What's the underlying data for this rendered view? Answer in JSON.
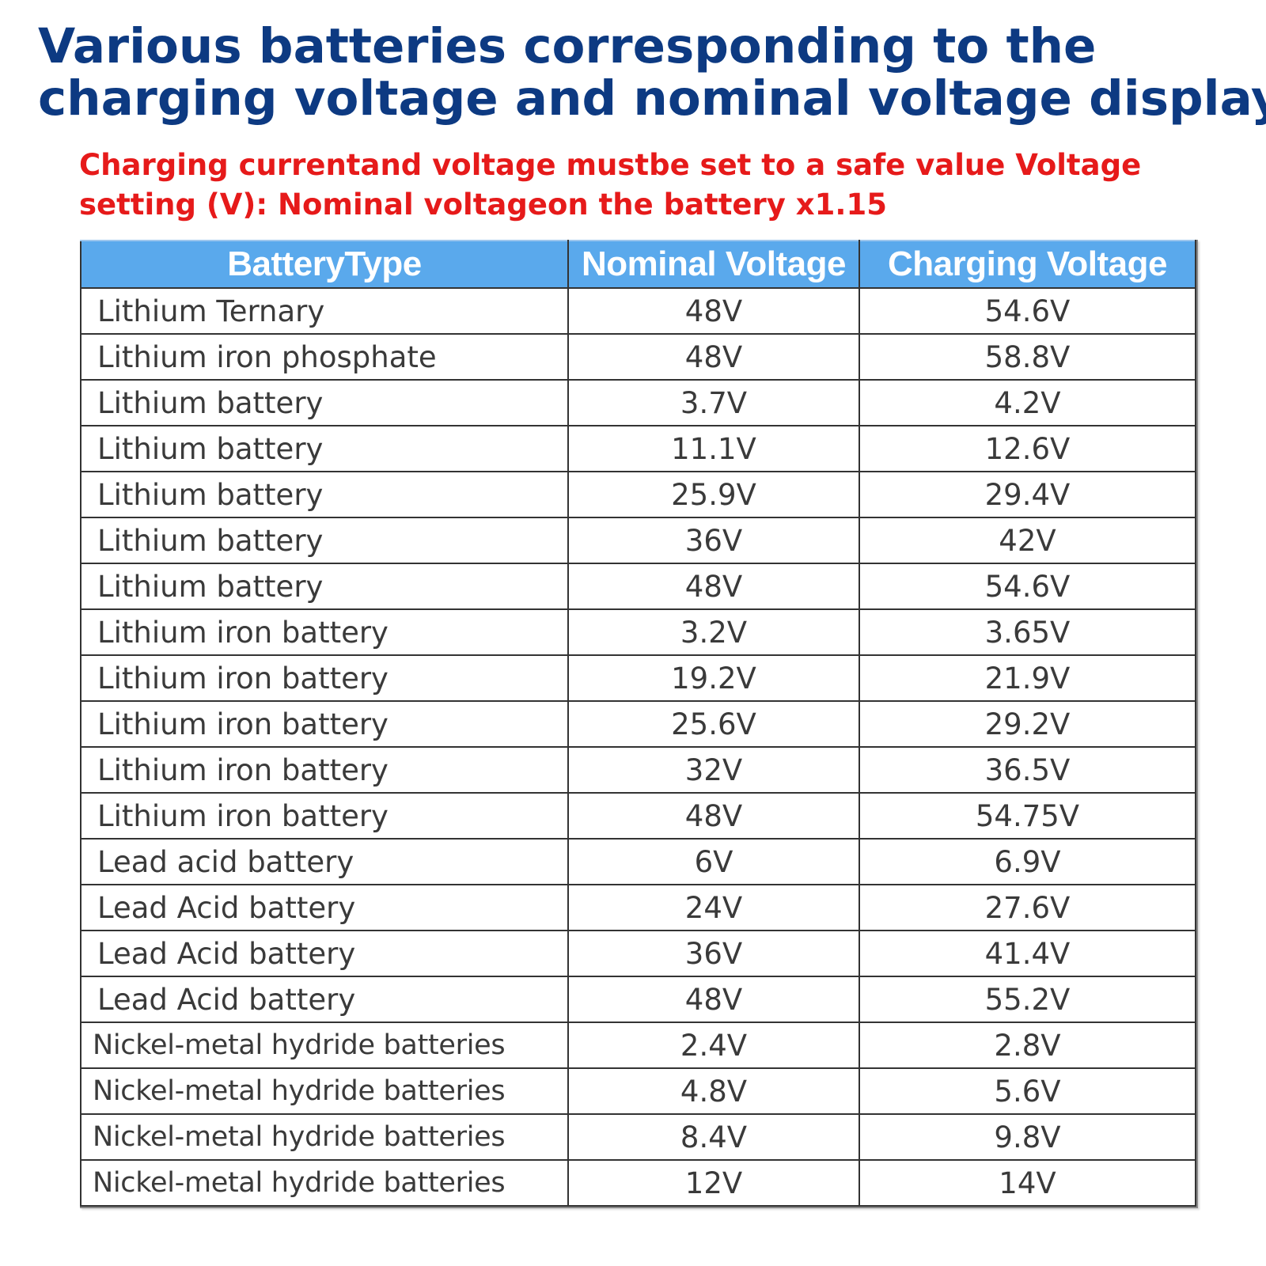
{
  "title": {
    "line1": "Various batteries corresponding to the",
    "line2": "charging voltage and nominal voltage display"
  },
  "note": {
    "line1": "Charging currentand voltage mustbe set to a safe value Voltage",
    "line2": "setting (V): Nominal voltageon the battery x1.15"
  },
  "table": {
    "headers": [
      "BatteryType",
      "Nominal Voltage",
      "Charging Voltage"
    ],
    "rows": [
      {
        "type": "Lithium Ternary",
        "nominal": "48V",
        "charging": "54.6V"
      },
      {
        "type": "Lithium iron phosphate",
        "nominal": "48V",
        "charging": "58.8V"
      },
      {
        "type": "Lithium battery",
        "nominal": "3.7V",
        "charging": "4.2V"
      },
      {
        "type": "Lithium battery",
        "nominal": "11.1V",
        "charging": "12.6V"
      },
      {
        "type": "Lithium battery",
        "nominal": "25.9V",
        "charging": "29.4V"
      },
      {
        "type": "Lithium battery",
        "nominal": "36V",
        "charging": "42V"
      },
      {
        "type": "Lithium battery",
        "nominal": "48V",
        "charging": "54.6V"
      },
      {
        "type": "Lithium iron battery",
        "nominal": "3.2V",
        "charging": "3.65V"
      },
      {
        "type": "Lithium iron battery",
        "nominal": "19.2V",
        "charging": "21.9V"
      },
      {
        "type": "Lithium iron battery",
        "nominal": "25.6V",
        "charging": "29.2V"
      },
      {
        "type": "Lithium iron battery",
        "nominal": "32V",
        "charging": "36.5V"
      },
      {
        "type": "Lithium iron battery",
        "nominal": "48V",
        "charging": "54.75V"
      },
      {
        "type": "Lead acid battery",
        "nominal": "6V",
        "charging": "6.9V"
      },
      {
        "type": "Lead Acid battery",
        "nominal": "24V",
        "charging": "27.6V"
      },
      {
        "type": "Lead Acid battery",
        "nominal": "36V",
        "charging": "41.4V"
      },
      {
        "type": "Lead Acid battery",
        "nominal": "48V",
        "charging": "55.2V"
      },
      {
        "type": "Nickel-metal hydride batteries",
        "nominal": "2.4V",
        "charging": "2.8V"
      },
      {
        "type": "Nickel-metal hydride batteries",
        "nominal": "4.8V",
        "charging": "5.6V"
      },
      {
        "type": "Nickel-metal hydride batteries",
        "nominal": "8.4V",
        "charging": "9.8V"
      },
      {
        "type": "Nickel-metal hydride batteries",
        "nominal": "12V",
        "charging": "14V"
      }
    ]
  },
  "colors": {
    "title": "#0d3a82",
    "note": "#e61a1a",
    "header_bg": "#5aa9ec",
    "header_text": "#ffffff",
    "cell_text": "#3a3a3a"
  }
}
